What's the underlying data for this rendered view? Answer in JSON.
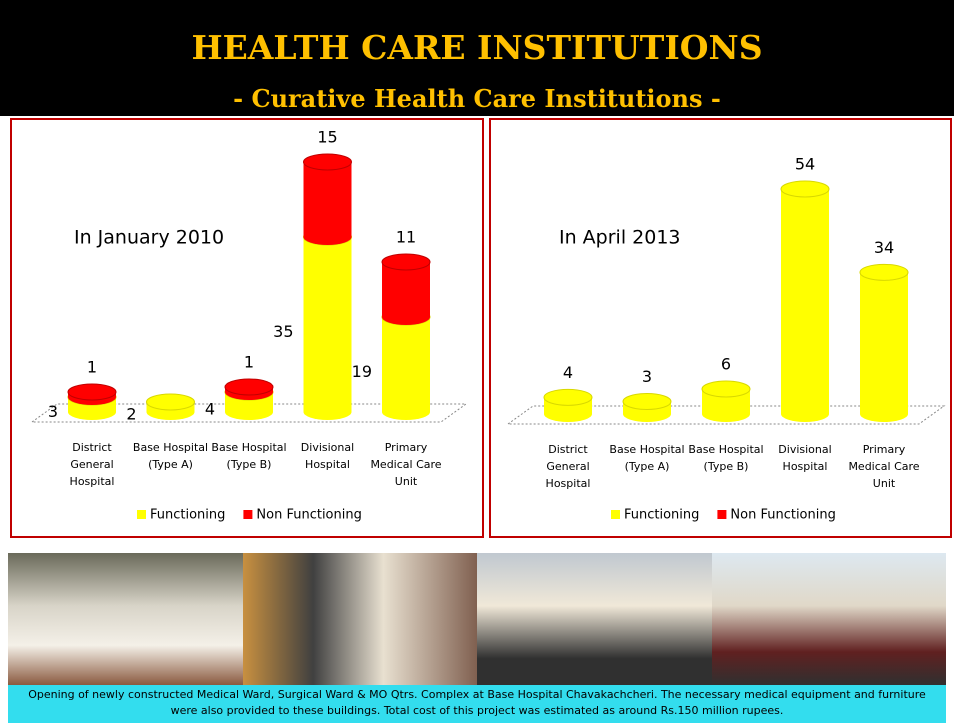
{
  "title": "HEALTH CARE INSTITUTIONS",
  "subtitle": "- Curative Health Care Institutions -",
  "caption": "Opening of newly constructed Medical Ward, Surgical Ward & MO Qtrs. Complex at Base Hospital Chavakachcheri. The necessary medical equipment and furniture were also provided to these buildings. Total cost of this project was estimated as around Rs.150 million rupees.",
  "chart_data": [
    {
      "type": "bar",
      "title": "In January 2010",
      "categories": [
        "District General Hospital",
        "Base Hospital (Type A)",
        "Base Hospital (Type B)",
        "Divisional Hospital",
        "Primary Medical Care Unit"
      ],
      "series": [
        {
          "name": "Functioning",
          "color": "#ffff00",
          "values": [
            3,
            2,
            4,
            35,
            19
          ]
        },
        {
          "name": "Non Functioning",
          "color": "#ff0000",
          "values": [
            1,
            null,
            1,
            15,
            11
          ]
        }
      ]
    },
    {
      "type": "bar",
      "title": "In April 2013",
      "categories": [
        "District General Hospital",
        "Base Hospital (Type A)",
        "Base Hospital (Type B)",
        "Divisional Hospital",
        "Primary Medical Care Unit"
      ],
      "series": [
        {
          "name": "Functioning",
          "color": "#ffff00",
          "values": [
            4,
            3,
            6,
            54,
            34
          ]
        },
        {
          "name": "Non Functioning",
          "color": "#ff0000",
          "values": [
            null,
            null,
            null,
            null,
            null
          ]
        }
      ]
    }
  ]
}
